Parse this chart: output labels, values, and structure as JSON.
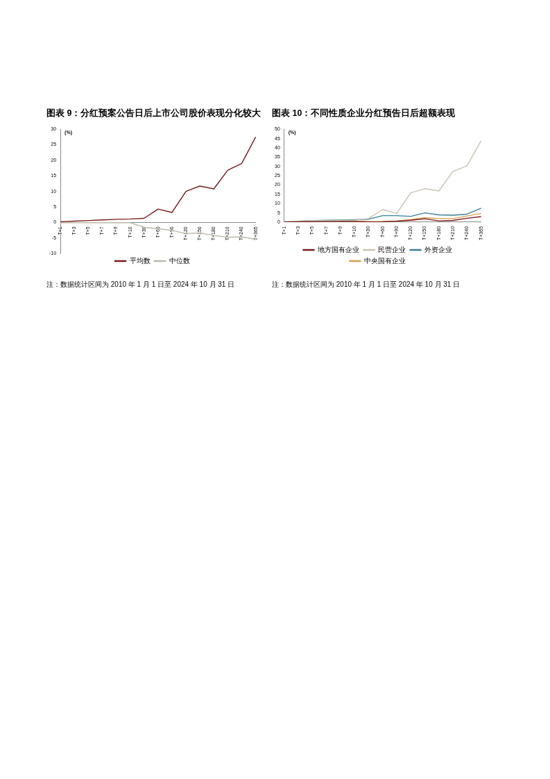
{
  "chart_data": [
    {
      "type": "line",
      "title": "图表 9：分红预案公告日后上市公司股价表现分化较大",
      "ylabel": "(%)",
      "categories": [
        "T+1",
        "T+3",
        "T+5",
        "T+7",
        "T+9",
        "T+10",
        "T+30",
        "T+60",
        "T+90",
        "T+120",
        "T+150",
        "T+180",
        "T+210",
        "T+240",
        "T+365"
      ],
      "series": [
        {
          "name": "平均数",
          "color": "#7b1a1e",
          "values": [
            0.2,
            0.4,
            0.6,
            0.8,
            1.0,
            1.1,
            1.3,
            4.3,
            3.2,
            10,
            11.7,
            10.8,
            16.8,
            19,
            27.5
          ]
        },
        {
          "name": "中位数",
          "color": "#bdb8a8",
          "values": [
            -0.1,
            -0.1,
            -0.1,
            -0.1,
            -0.1,
            -0.1,
            -1.6,
            -2,
            -2.6,
            -3.6,
            -3.4,
            -4.2,
            -4.8,
            -4.7,
            -5.4
          ]
        }
      ],
      "ylim": [
        -10,
        30
      ],
      "yticks": [
        -10,
        -5,
        0,
        5,
        10,
        15,
        20,
        25,
        30
      ],
      "grid": false,
      "legend": "bottom",
      "marker": "none",
      "line_style": "solid",
      "annotations": [
        "注：数据统计区间为 2010 年 1 月 1 日至 2024 年 10 月 31 日"
      ]
    },
    {
      "type": "line",
      "title": "图表 10：不同性质企业分红预告日后超额表现",
      "ylabel": "(%)",
      "categories": [
        "T+1",
        "T+3",
        "T+5",
        "T+7",
        "T+9",
        "T+10",
        "T+30",
        "T+60",
        "T+90",
        "T+120",
        "T+150",
        "T+180",
        "T+210",
        "T+240",
        "T+365"
      ],
      "series": [
        {
          "name": "地方国有企业",
          "color": "#7b1a1e",
          "values": [
            0,
            0.2,
            0.3,
            0.4,
            0.4,
            0.4,
            0.1,
            0.2,
            0.5,
            1.0,
            1.8,
            0.7,
            0.9,
            2.1,
            3
          ]
        },
        {
          "name": "民营企业",
          "color": "#c9c3b0",
          "values": [
            0.2,
            0.6,
            0.8,
            0.9,
            1.0,
            1.0,
            2.0,
            6.8,
            4.7,
            15.8,
            18,
            16.8,
            27.3,
            30.3,
            43.8
          ]
        },
        {
          "name": "外资企业",
          "color": "#3a7f9a",
          "values": [
            0.2,
            0.5,
            0.8,
            1.0,
            1.2,
            1.3,
            1.6,
            3.5,
            3.5,
            3.1,
            5.0,
            3.9,
            3.7,
            4.3,
            7.5
          ]
        },
        {
          "name": "中央国有企业",
          "color": "#d4a04a",
          "values": [
            null,
            null,
            null,
            null,
            0.6,
            0.6,
            0.3,
            0.4,
            0.7,
            1.4,
            2.4,
            1.9,
            1.9,
            3.3,
            4.7
          ]
        }
      ],
      "ylim": [
        0,
        50
      ],
      "yticks": [
        0,
        5,
        10,
        15,
        20,
        25,
        30,
        35,
        40,
        45,
        50
      ],
      "grid": false,
      "legend": "bottom",
      "marker": "none",
      "line_style": "solid",
      "annotations": [
        "注：数据统计区间为 2010 年 1 月 1 日至 2024 年 10 月 31 日"
      ]
    }
  ]
}
